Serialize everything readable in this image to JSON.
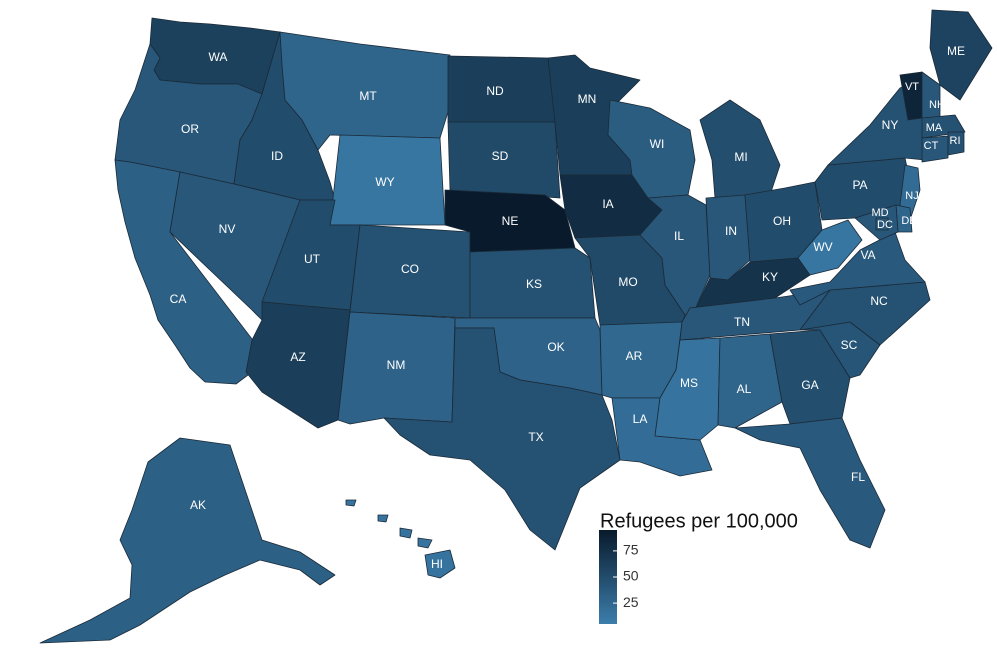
{
  "map": {
    "legend_title": "Refugees per 100,000",
    "legend_ticks": [
      {
        "label": "75",
        "value": 75
      },
      {
        "label": "50",
        "value": 50
      },
      {
        "label": "25",
        "value": 25
      }
    ],
    "scale": {
      "min": 5,
      "max": 95,
      "low_color": "#3c7eac",
      "high_color": "#081a2b"
    },
    "states": [
      {
        "abbr": "WA",
        "value": 60
      },
      {
        "abbr": "OR",
        "value": 40
      },
      {
        "abbr": "CA",
        "value": 32
      },
      {
        "abbr": "ID",
        "value": 50
      },
      {
        "abbr": "NV",
        "value": 40
      },
      {
        "abbr": "MT",
        "value": 28
      },
      {
        "abbr": "WY",
        "value": 12
      },
      {
        "abbr": "UT",
        "value": 50
      },
      {
        "abbr": "AZ",
        "value": 62
      },
      {
        "abbr": "CO",
        "value": 45
      },
      {
        "abbr": "NM",
        "value": 30
      },
      {
        "abbr": "ND",
        "value": 62
      },
      {
        "abbr": "SD",
        "value": 52
      },
      {
        "abbr": "NE",
        "value": 95
      },
      {
        "abbr": "KS",
        "value": 45
      },
      {
        "abbr": "OK",
        "value": 30
      },
      {
        "abbr": "TX",
        "value": 45
      },
      {
        "abbr": "MN",
        "value": 62
      },
      {
        "abbr": "IA",
        "value": 78
      },
      {
        "abbr": "MO",
        "value": 52
      },
      {
        "abbr": "AR",
        "value": 25
      },
      {
        "abbr": "LA",
        "value": 20
      },
      {
        "abbr": "WI",
        "value": 35
      },
      {
        "abbr": "IL",
        "value": 40
      },
      {
        "abbr": "MI",
        "value": 48
      },
      {
        "abbr": "IN",
        "value": 40
      },
      {
        "abbr": "OH",
        "value": 50
      },
      {
        "abbr": "KY",
        "value": 72
      },
      {
        "abbr": "TN",
        "value": 40
      },
      {
        "abbr": "MS",
        "value": 15
      },
      {
        "abbr": "AL",
        "value": 28
      },
      {
        "abbr": "GA",
        "value": 48
      },
      {
        "abbr": "FL",
        "value": 38
      },
      {
        "abbr": "SC",
        "value": 42
      },
      {
        "abbr": "NC",
        "value": 45
      },
      {
        "abbr": "VA",
        "value": 38
      },
      {
        "abbr": "WV",
        "value": 12
      },
      {
        "abbr": "PA",
        "value": 50
      },
      {
        "abbr": "NY",
        "value": 45
      },
      {
        "abbr": "VT",
        "value": 85
      },
      {
        "abbr": "NH",
        "value": 40
      },
      {
        "abbr": "ME",
        "value": 58
      },
      {
        "abbr": "MA",
        "value": 45
      },
      {
        "abbr": "CT",
        "value": 40
      },
      {
        "abbr": "RI",
        "value": 45
      },
      {
        "abbr": "NJ",
        "value": 22
      },
      {
        "abbr": "DE",
        "value": 28
      },
      {
        "abbr": "MD",
        "value": 40
      },
      {
        "abbr": "DC",
        "value": 40
      },
      {
        "abbr": "AK",
        "value": 32
      },
      {
        "abbr": "HI",
        "value": 15
      }
    ]
  }
}
